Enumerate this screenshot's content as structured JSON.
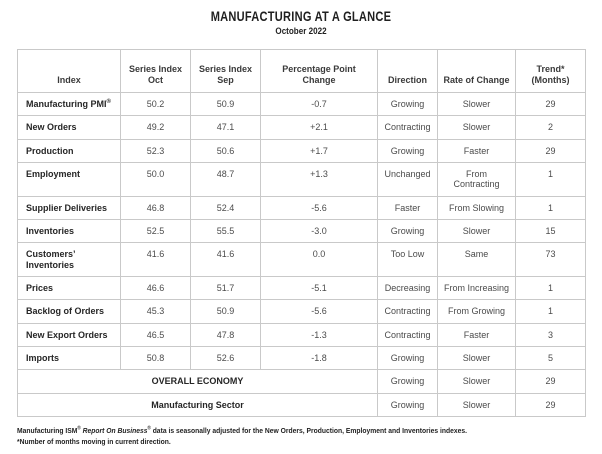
{
  "title": "MANUFACTURING AT A GLANCE",
  "subtitle": "October 2022",
  "table": {
    "headers": [
      "Index",
      "Series Index\nOct",
      "Series Index\nSep",
      "Percentage Point\nChange",
      "Direction",
      "Rate of Change",
      "Trend*\n(Months)"
    ],
    "rows": [
      {
        "label": "Manufacturing PMI",
        "label_sup": "®",
        "oct": "50.2",
        "sep": "50.9",
        "change": "-0.7",
        "direction": "Growing",
        "rate_of_change": "Slower",
        "trend": "29"
      },
      {
        "label": "New Orders",
        "oct": "49.2",
        "sep": "47.1",
        "change": "+2.1",
        "direction": "Contracting",
        "rate_of_change": "Slower",
        "trend": "2"
      },
      {
        "label": "Production",
        "oct": "52.3",
        "sep": "50.6",
        "change": "+1.7",
        "direction": "Growing",
        "rate_of_change": "Faster",
        "trend": "29"
      },
      {
        "label": "Employment",
        "oct": "50.0",
        "sep": "48.7",
        "change": "+1.3",
        "direction": "Unchanged",
        "rate_of_change": "From\nContracting",
        "trend": "1"
      },
      {
        "label": "Supplier Deliveries",
        "oct": "46.8",
        "sep": "52.4",
        "change": "-5.6",
        "direction": "Faster",
        "rate_of_change": "From Slowing",
        "trend": "1"
      },
      {
        "label": "Inventories",
        "oct": "52.5",
        "sep": "55.5",
        "change": "-3.0",
        "direction": "Growing",
        "rate_of_change": "Slower",
        "trend": "15"
      },
      {
        "label": "Customers’\nInventories",
        "oct": "41.6",
        "sep": "41.6",
        "change": "0.0",
        "direction": "Too Low",
        "rate_of_change": "Same",
        "trend": "73"
      },
      {
        "label": "Prices",
        "oct": "46.6",
        "sep": "51.7",
        "change": "-5.1",
        "direction": "Decreasing",
        "rate_of_change": "From Increasing",
        "trend": "1"
      },
      {
        "label": "Backlog of Orders",
        "oct": "45.3",
        "sep": "50.9",
        "change": "-5.6",
        "direction": "Contracting",
        "rate_of_change": "From Growing",
        "trend": "1"
      },
      {
        "label": "New Export Orders",
        "oct": "46.5",
        "sep": "47.8",
        "change": "-1.3",
        "direction": "Contracting",
        "rate_of_change": "Faster",
        "trend": "3"
      },
      {
        "label": "Imports",
        "oct": "50.8",
        "sep": "52.6",
        "change": "-1.8",
        "direction": "Growing",
        "rate_of_change": "Slower",
        "trend": "5"
      }
    ],
    "summary_rows": [
      {
        "label": "OVERALL ECONOMY",
        "direction": "Growing",
        "rate_of_change": "Slower",
        "trend": "29"
      },
      {
        "label": "Manufacturing Sector",
        "direction": "Growing",
        "rate_of_change": "Slower",
        "trend": "29"
      }
    ]
  },
  "footnote": {
    "part1": "Manufacturing ISM",
    "sup1": "®",
    "italic": "Report On Business",
    "sup2": "®",
    "part2": "data is seasonally adjusted for the New Orders, Production, Employment and Inventories indexes.",
    "line2": "*Number of months moving in current direction."
  },
  "colors": {
    "border": "#c9c9c9",
    "heading_text": "#1f1f1f",
    "label_text": "#262626",
    "value_text": "#4b4b4b",
    "background": "#ffffff"
  }
}
